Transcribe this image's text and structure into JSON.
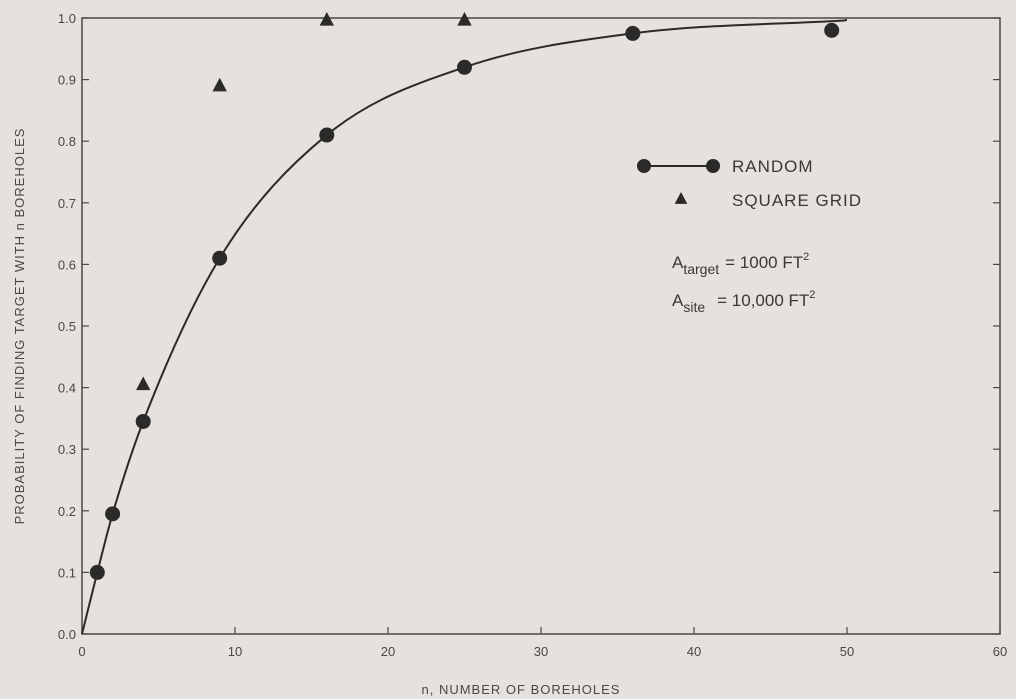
{
  "chart_data": {
    "type": "scatter",
    "xlabel": "n, NUMBER OF BOREHOLES",
    "ylabel": "PROBABILITY OF FINDING TARGET WITH n BOREHOLES",
    "xlim": [
      0,
      60
    ],
    "ylim": [
      0,
      1.0
    ],
    "x_ticks": [
      "0",
      "10",
      "20",
      "30",
      "40",
      "50",
      "60"
    ],
    "y_ticks": [
      "0.0",
      "0.1",
      "0.2",
      "0.3",
      "0.4",
      "0.5",
      "0.6",
      "0.7",
      "0.8",
      "0.9",
      "1.0"
    ],
    "grid": false,
    "legend_position": "right",
    "series": [
      {
        "name": "RANDOM",
        "marker": "circle",
        "line": true,
        "x": [
          1,
          2,
          4,
          9,
          16,
          25,
          36,
          49
        ],
        "y": [
          0.1,
          0.195,
          0.345,
          0.61,
          0.81,
          0.92,
          0.975,
          0.98
        ]
      },
      {
        "name": "SQUARE GRID",
        "marker": "triangle",
        "line": false,
        "x": [
          4,
          9,
          16,
          25
        ],
        "y": [
          0.405,
          0.89,
          1.0,
          1.0
        ]
      }
    ],
    "annotations": {
      "target": {
        "symbol": "A",
        "sub": "target",
        "value": "= 1000 FT",
        "sup": "2"
      },
      "site": {
        "symbol": "A",
        "sub": "site",
        "value": "= 10,000 FT",
        "sup": "2"
      }
    },
    "colors": {
      "background": "#e4e1de",
      "ink": "#2b2a28",
      "axis": "#4a4844"
    }
  }
}
